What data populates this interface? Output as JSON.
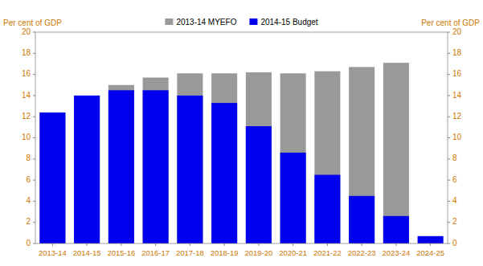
{
  "chart_data": {
    "type": "bar",
    "categories": [
      "2013-14",
      "2014-15",
      "2015-16",
      "2016-17",
      "2017-18",
      "2018-19",
      "2019-20",
      "2020-21",
      "2021-22",
      "2022-23",
      "2023-24",
      "2024-25"
    ],
    "series": [
      {
        "name": "2013-14 MYEFO",
        "color": "#999999",
        "values": [
          12.4,
          14.0,
          15.0,
          15.7,
          16.1,
          16.1,
          16.2,
          16.1,
          16.3,
          16.7,
          17.1,
          0.0
        ]
      },
      {
        "name": "2014-15 Budget",
        "color": "#0000EE",
        "values": [
          12.4,
          14.0,
          14.5,
          14.5,
          14.0,
          13.3,
          11.1,
          8.6,
          6.5,
          4.5,
          2.6,
          0.7
        ]
      }
    ],
    "stacked": false,
    "ylabel": "Per cent of GDP",
    "y2label": "Per cent of GDP",
    "ylim": [
      0,
      20
    ],
    "yticks": [
      0,
      2,
      4,
      6,
      8,
      10,
      12,
      14,
      16,
      18,
      20
    ],
    "y2lim": [
      0,
      20
    ],
    "y2ticks": [
      0,
      2,
      4,
      6,
      8,
      10,
      12,
      14,
      16,
      18,
      20
    ],
    "grid": false,
    "legend": "top"
  }
}
